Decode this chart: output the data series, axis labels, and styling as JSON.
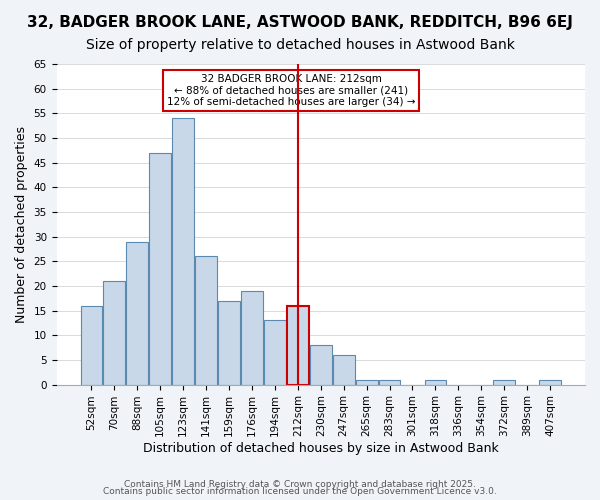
{
  "title1": "32, BADGER BROOK LANE, ASTWOOD BANK, REDDITCH, B96 6EJ",
  "title2": "Size of property relative to detached houses in Astwood Bank",
  "xlabel": "Distribution of detached houses by size in Astwood Bank",
  "ylabel": "Number of detached properties",
  "bin_labels": [
    "52sqm",
    "70sqm",
    "88sqm",
    "105sqm",
    "123sqm",
    "141sqm",
    "159sqm",
    "176sqm",
    "194sqm",
    "212sqm",
    "230sqm",
    "247sqm",
    "265sqm",
    "283sqm",
    "301sqm",
    "318sqm",
    "336sqm",
    "354sqm",
    "372sqm",
    "389sqm",
    "407sqm"
  ],
  "bar_heights": [
    16,
    21,
    29,
    47,
    54,
    26,
    17,
    19,
    13,
    16,
    8,
    6,
    1,
    1,
    0,
    1,
    0,
    0,
    1,
    0,
    1
  ],
  "bar_color": "#c8d8e8",
  "bar_edge_color": "#5a8ab0",
  "highlight_index": 9,
  "highlight_edge_color": "#cc0000",
  "vline_color": "#cc0000",
  "annotation_title": "32 BADGER BROOK LANE: 212sqm",
  "annotation_line1": "← 88% of detached houses are smaller (241)",
  "annotation_line2": "12% of semi-detached houses are larger (34) →",
  "annotation_box_edge": "#cc0000",
  "ylim": [
    0,
    65
  ],
  "yticks": [
    0,
    5,
    10,
    15,
    20,
    25,
    30,
    35,
    40,
    45,
    50,
    55,
    60,
    65
  ],
  "footer1": "Contains HM Land Registry data © Crown copyright and database right 2025.",
  "footer2": "Contains public sector information licensed under the Open Government Licence v3.0.",
  "bg_color": "#f0f4f8",
  "plot_bg_color": "#ffffff",
  "title1_fontsize": 11,
  "title2_fontsize": 10,
  "xlabel_fontsize": 9,
  "ylabel_fontsize": 9,
  "tick_fontsize": 7.5,
  "footer_fontsize": 6.5
}
